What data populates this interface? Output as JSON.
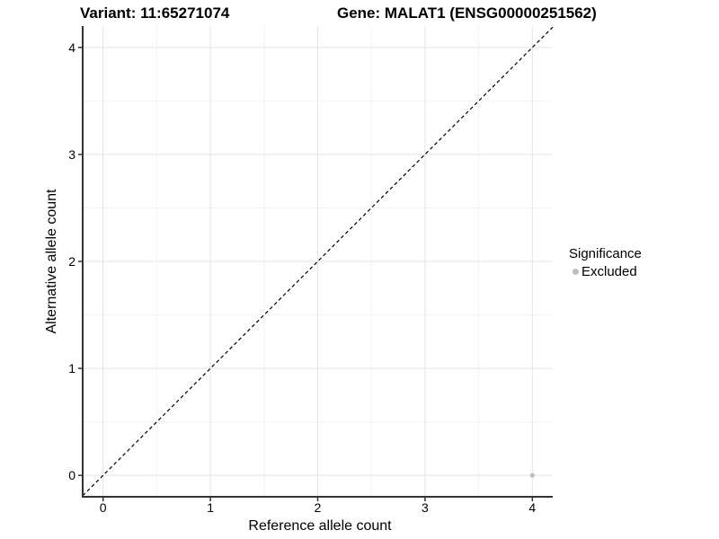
{
  "colors": {
    "background": "#ffffff",
    "grid_major": "#e4e4e4",
    "grid_minor": "#f2f2f2",
    "axis_line": "#333333",
    "tick_text": "#000000",
    "point_excluded": "#bebebe",
    "reference_line": "#000000"
  },
  "chart_data": {
    "type": "scatter",
    "title_left": "Variant: 11:65271074",
    "title_right": "Gene: MALAT1 (ENSG00000251562)",
    "xlabel": "Reference allele count",
    "ylabel": "Alternative allele count",
    "xlim": [
      -0.19,
      4.19
    ],
    "ylim": [
      -0.2,
      4.2
    ],
    "x_ticks": [
      0,
      1,
      2,
      3,
      4
    ],
    "y_ticks": [
      0,
      1,
      2,
      3,
      4
    ],
    "x_minor_ticks": [
      0.5,
      1.5,
      2.5,
      3.5
    ],
    "y_minor_ticks": [
      0.5,
      1.5,
      2.5,
      3.5
    ],
    "grid": true,
    "reference_line": {
      "kind": "identity",
      "style": "dashed"
    },
    "series": [
      {
        "name": "Excluded",
        "color": "#bebebe",
        "points": [
          {
            "x": 4,
            "y": 0
          }
        ]
      }
    ],
    "legend": {
      "title": "Significance",
      "position": "right",
      "entries": [
        {
          "label": "Excluded",
          "color": "#bebebe"
        }
      ]
    }
  }
}
